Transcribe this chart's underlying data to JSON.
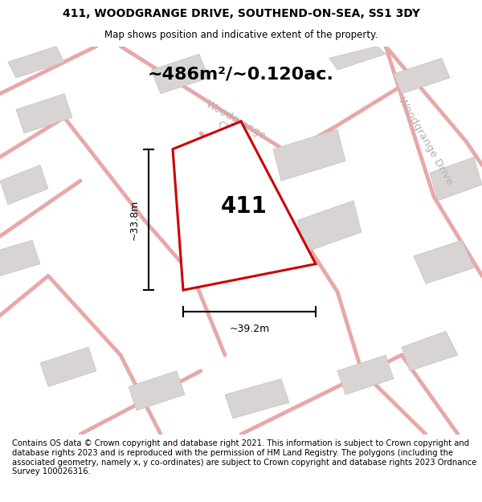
{
  "title_line1": "411, WOODGRANGE DRIVE, SOUTHEND-ON-SEA, SS1 3DY",
  "title_line2": "Map shows position and indicative extent of the property.",
  "area_label": "~486m²/~0.120ac.",
  "plot_number": "411",
  "width_label": "~39.2m",
  "height_label": "~33.8m",
  "footer": "Contains OS data © Crown copyright and database right 2021. This information is subject to Crown copyright and database rights 2023 and is reproduced with the permission of HM Land Registry. The polygons (including the associated geometry, namely x, y co-ordinates) are subject to Crown copyright and database rights 2023 Ordnance Survey 100026316.",
  "map_bg": "#f2eeee",
  "plot_fill": "#ffffff",
  "plot_edge": "#cc0000",
  "road_color": "#e8a8a8",
  "building_fill": "#d8d4d4",
  "building_edge": "#c8c0c0",
  "road_label_color": "#b8aeb0",
  "title_fontsize": 10,
  "subtitle_fontsize": 8.5,
  "area_fontsize": 16,
  "plot_num_fontsize": 20,
  "dim_fontsize": 9,
  "footer_fontsize": 7.2,
  "road_label_fontsize": 9.5
}
